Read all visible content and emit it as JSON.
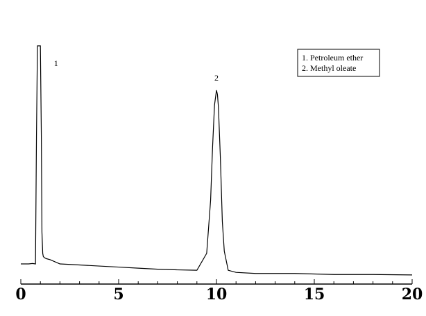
{
  "chart_data": {
    "type": "line",
    "title": "",
    "xlabel": "",
    "ylabel": "",
    "xlim": [
      0,
      20
    ],
    "x_ticks": [
      0,
      5,
      10,
      15,
      20
    ],
    "tick_labels": [
      "0",
      "5",
      "10",
      "15",
      "20"
    ],
    "grid": false,
    "legend_position": "top-right",
    "legend": [
      "1. Petroleum ether",
      "2. Methyl oleate"
    ],
    "peak_labels": [
      {
        "text": "1",
        "x": 1.8
      },
      {
        "text": "2",
        "x": 10.0
      }
    ],
    "series": [
      {
        "x": [
          0.0,
          0.2,
          0.4,
          0.6,
          0.75,
          0.8,
          0.85,
          0.9,
          1.0,
          1.05,
          1.08,
          1.12,
          1.15,
          1.2,
          1.3,
          1.5,
          2.0,
          3.0,
          4.0,
          5.0,
          6.0,
          7.0,
          8.0,
          9.0,
          9.5,
          9.7,
          9.8,
          9.9,
          10.0,
          10.05,
          10.1,
          10.2,
          10.3,
          10.4,
          10.6,
          11.0,
          12.0,
          14.0,
          16.0,
          18.0,
          20.0
        ],
        "y": [
          0.0,
          0.0,
          0.0,
          0.002,
          0.0,
          0.6,
          1.1,
          1.1,
          1.1,
          0.6,
          0.15,
          0.05,
          0.035,
          0.03,
          0.025,
          0.02,
          0.0,
          -0.005,
          -0.01,
          -0.015,
          -0.02,
          -0.025,
          -0.028,
          -0.03,
          0.05,
          0.3,
          0.55,
          0.75,
          0.82,
          0.8,
          0.74,
          0.5,
          0.2,
          0.06,
          -0.03,
          -0.04,
          -0.045,
          -0.045,
          -0.05,
          -0.05,
          -0.052
        ]
      }
    ],
    "colors": {
      "line": "#000000",
      "background": "#ffffff"
    }
  }
}
